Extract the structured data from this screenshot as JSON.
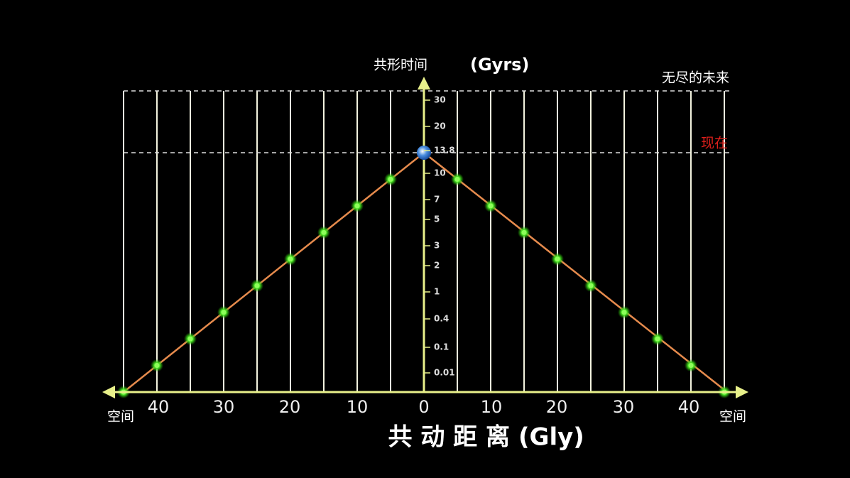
{
  "y_axis": {
    "label": "共形时间",
    "unit": "(Gyrs)",
    "ticks": [
      "30",
      "20",
      "13.8",
      "10",
      "7",
      "5",
      "3",
      "2",
      "1",
      "0.4",
      "0.1",
      "0.01"
    ]
  },
  "x_axis": {
    "label": "共 动 距 离",
    "unit": "(Gly)",
    "ticks": [
      "40",
      "30",
      "20",
      "10",
      "0",
      "10",
      "20",
      "30",
      "40"
    ]
  },
  "space_labels": [
    "空间",
    "空间"
  ],
  "annotations": {
    "future": "无尽的未来",
    "now": "现在"
  }
}
